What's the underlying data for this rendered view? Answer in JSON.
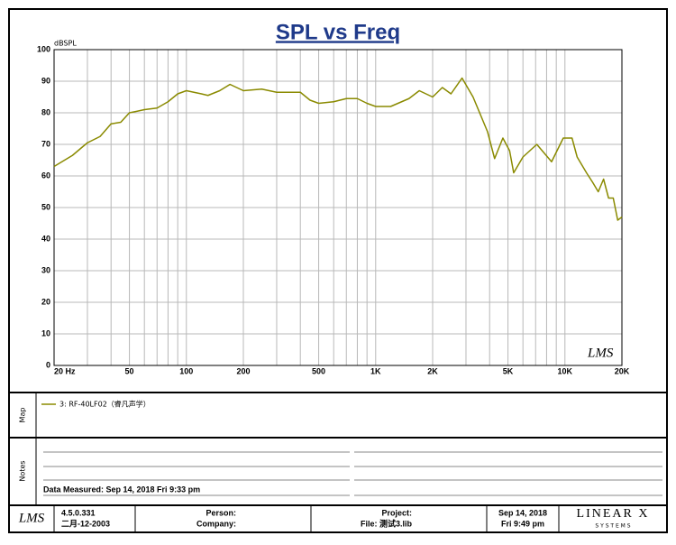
{
  "chart_data": {
    "type": "line",
    "title": "SPL vs Freq",
    "y_label": "dBSPL",
    "watermark": "LMS",
    "x": [
      20,
      22,
      25,
      28,
      30,
      35,
      40,
      45,
      50,
      55,
      60,
      70,
      80,
      90,
      100,
      120,
      130,
      150,
      170,
      200,
      250,
      300,
      400,
      450,
      500,
      600,
      700,
      800,
      900,
      1000,
      1200,
      1500,
      1700,
      2000,
      2250,
      2500,
      2860,
      3270,
      3600,
      3900,
      4250,
      4700,
      5100,
      5360,
      6000,
      7100,
      8500,
      9800,
      10900,
      11600,
      13000,
      14000,
      15000,
      16000,
      17000,
      18000,
      19000,
      20000
    ],
    "series": [
      {
        "name": "3: RF-40LF02（睿凡声学）",
        "color": "#8a8a00",
        "values": [
          63,
          64.5,
          66.5,
          69,
          70.5,
          72.5,
          76.5,
          77,
          80,
          80.5,
          81,
          81.5,
          83.5,
          86,
          87,
          86,
          85.5,
          87,
          89,
          87,
          87.5,
          86.5,
          86.5,
          84,
          83,
          83.5,
          84.5,
          84.5,
          83,
          82,
          82,
          84.5,
          87,
          85,
          88,
          86,
          91,
          85,
          79,
          74,
          65.5,
          72,
          68,
          61,
          66,
          70,
          64.5,
          72,
          72,
          66,
          61,
          58,
          55,
          59,
          53,
          53,
          46,
          47
        ]
      }
    ],
    "xlim": [
      20,
      20000
    ],
    "xscale": "log",
    "xticks": [
      {
        "value": 20,
        "label": "20 Hz"
      },
      50,
      100,
      200,
      500,
      {
        "value": 1000,
        "label": "1K"
      },
      {
        "value": 2000,
        "label": "2K"
      },
      {
        "value": 5000,
        "label": "5K"
      },
      {
        "value": 10000,
        "label": "10K"
      },
      {
        "value": 20000,
        "label": "20K"
      }
    ],
    "xminor": [
      30,
      40,
      60,
      70,
      80,
      90,
      300,
      400,
      600,
      700,
      800,
      900,
      3000,
      4000,
      6000,
      7000,
      8000,
      9000
    ],
    "ylim": [
      0,
      100
    ],
    "yticks": [
      0,
      10,
      20,
      30,
      40,
      50,
      60,
      70,
      80,
      90,
      100
    ],
    "grid": true
  },
  "map": {
    "label": "Map"
  },
  "notes": {
    "label": "Notes",
    "measured": "Data Measured: Sep 14, 2018  Fri  9:33 pm"
  },
  "footer": {
    "logo": "LMS",
    "version": "4.5.0.331",
    "build_date": "二月-12-2003",
    "person": "Person:",
    "company": "Company:",
    "project": "Project:",
    "file": "File: 测试3.lib",
    "date": "Sep 14, 2018",
    "time": "Fri  9:49 pm",
    "brand": "LINEAR X",
    "brand_sub": "S Y S T E M S"
  }
}
